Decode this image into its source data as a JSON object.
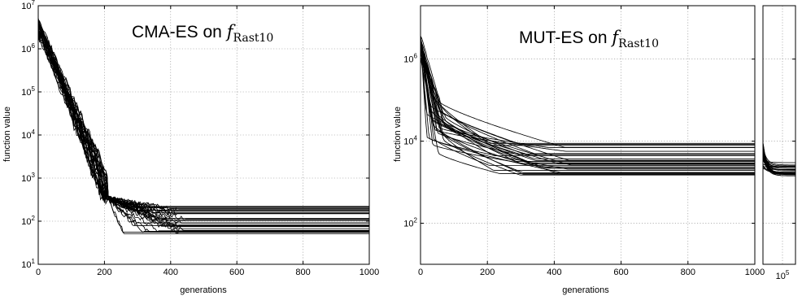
{
  "chart_data": [
    {
      "id": "cma",
      "type": "line",
      "title_prefix": "CMA-ES on ",
      "title_math": "f",
      "title_sub": "Rast10",
      "xlabel": "generations",
      "ylabel": "function value",
      "xlim": [
        0,
        1000
      ],
      "ylim": [
        10,
        10000000
      ],
      "yscale": "log",
      "grid": true,
      "x_ticks": [
        0,
        200,
        400,
        600,
        800,
        1000
      ],
      "x_tick_labels": [
        "0",
        "200",
        "400",
        "600",
        "800",
        "1000"
      ],
      "y_tick_values": [
        10,
        100,
        1000,
        10000,
        100000,
        1000000,
        10000000
      ],
      "y_tick_exponents": [
        "1",
        "2",
        "3",
        "4",
        "5",
        "6",
        "7"
      ],
      "y_tick_base": "10",
      "series_shape": {
        "start": 3000000,
        "at_x_200": 400,
        "plateau_start_x": [
          250,
          460
        ],
        "final_values": [
          50,
          230
        ],
        "runs": 30
      }
    },
    {
      "id": "mut",
      "type": "line",
      "title_prefix": "MUT-ES on ",
      "title_math": "f",
      "title_sub": "Rast10",
      "xlabel": "generations",
      "ylabel": "function value",
      "xlim": [
        0,
        1000
      ],
      "ylim": [
        10,
        20000000
      ],
      "yscale": "log",
      "grid": true,
      "x_ticks": [
        0,
        200,
        400,
        600,
        800,
        1000
      ],
      "x_tick_labels": [
        "0",
        "200",
        "400",
        "600",
        "800",
        "1000"
      ],
      "y_tick_values": [
        100,
        10000,
        1000000
      ],
      "y_tick_exponents": [
        "2",
        "4",
        "6"
      ],
      "y_tick_base": "10",
      "series_shape": {
        "start": 2000000,
        "plateau_start_x": [
          200,
          480
        ],
        "final_values": [
          1400,
          9500
        ],
        "runs": 30
      }
    },
    {
      "id": "mut-ext",
      "type": "line",
      "xlim": [
        0,
        100000
      ],
      "ylim": [
        10,
        20000000
      ],
      "yscale": "log",
      "x_tick_label_base": "10",
      "x_tick_label_exp": "5",
      "series_shape": {
        "start_values": [
          2000,
          9500
        ],
        "final_values": [
          1300,
          3000
        ]
      }
    }
  ]
}
